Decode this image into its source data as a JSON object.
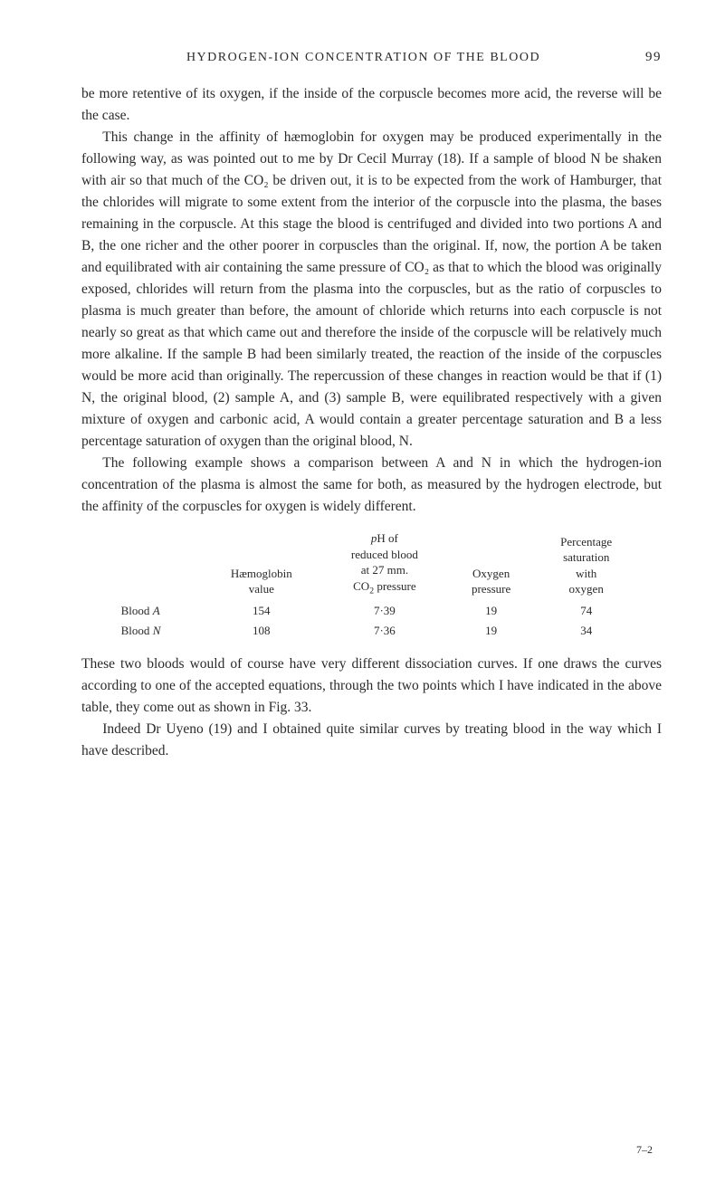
{
  "header": {
    "title": "HYDROGEN-ION CONCENTRATION OF THE BLOOD",
    "pageNumber": "99"
  },
  "paragraphs": {
    "p1": "be more retentive of its oxygen, if the inside of the corpuscle becomes more acid, the reverse will be the case.",
    "p2": "This change in the affinity of hæmoglobin for oxygen may be produced experimentally in the following way, as was pointed out to me by Dr Cecil Murray (18). If a sample of blood N be shaken with air so that much of the CO₂ be driven out, it is to be expected from the work of Hamburger, that the chlorides will migrate to some extent from the interior of the corpuscle into the plasma, the bases remaining in the corpuscle. At this stage the blood is centrifuged and divided into two portions A and B, the one richer and the other poorer in corpuscles than the original. If, now, the portion A be taken and equilibrated with air containing the same pressure of CO₂ as that to which the blood was originally exposed, chlorides will return from the plasma into the corpuscles, but as the ratio of corpuscles to plasma is much greater than before, the amount of chloride which returns into each corpuscle is not nearly so great as that which came out and therefore the inside of the corpuscle will be relatively much more alkaline. If the sample B had been similarly treated, the reaction of the inside of the corpuscles would be more acid than originally. The repercussion of these changes in reaction would be that if (1) N, the original blood, (2) sample A, and (3) sample B, were equilibrated respectively with a given mixture of oxygen and carbonic acid, A would contain a greater percentage saturation and B a less percentage saturation of oxygen than the original blood, N.",
    "p3": "The following example shows a comparison between A and N in which the hydrogen-ion concentration of the plasma is almost the same for both, as measured by the hydrogen electrode, but the affinity of the corpuscles for oxygen is widely different.",
    "p4": "These two bloods would of course have very different dissociation curves. If one draws the curves according to one of the accepted equations, through the two points which I have indicated in the above table, they come out as shown in Fig. 33.",
    "p5": "Indeed Dr Uyeno (19) and I obtained quite similar curves by treating blood in the way which I have described."
  },
  "table": {
    "columns": {
      "col1": "Hæmoglobin value",
      "col2": "pH of reduced blood at 27 mm. CO₂ pressure",
      "col3": "Oxygen pressure",
      "col4": "Percentage saturation with oxygen"
    },
    "rows": [
      {
        "label": "Blood A",
        "hemoglobin": "154",
        "ph": "7·39",
        "oxygen": "19",
        "saturation": "74"
      },
      {
        "label": "Blood N",
        "hemoglobin": "108",
        "ph": "7·36",
        "oxygen": "19",
        "saturation": "34"
      }
    ]
  },
  "footer": {
    "code": "7–2"
  }
}
